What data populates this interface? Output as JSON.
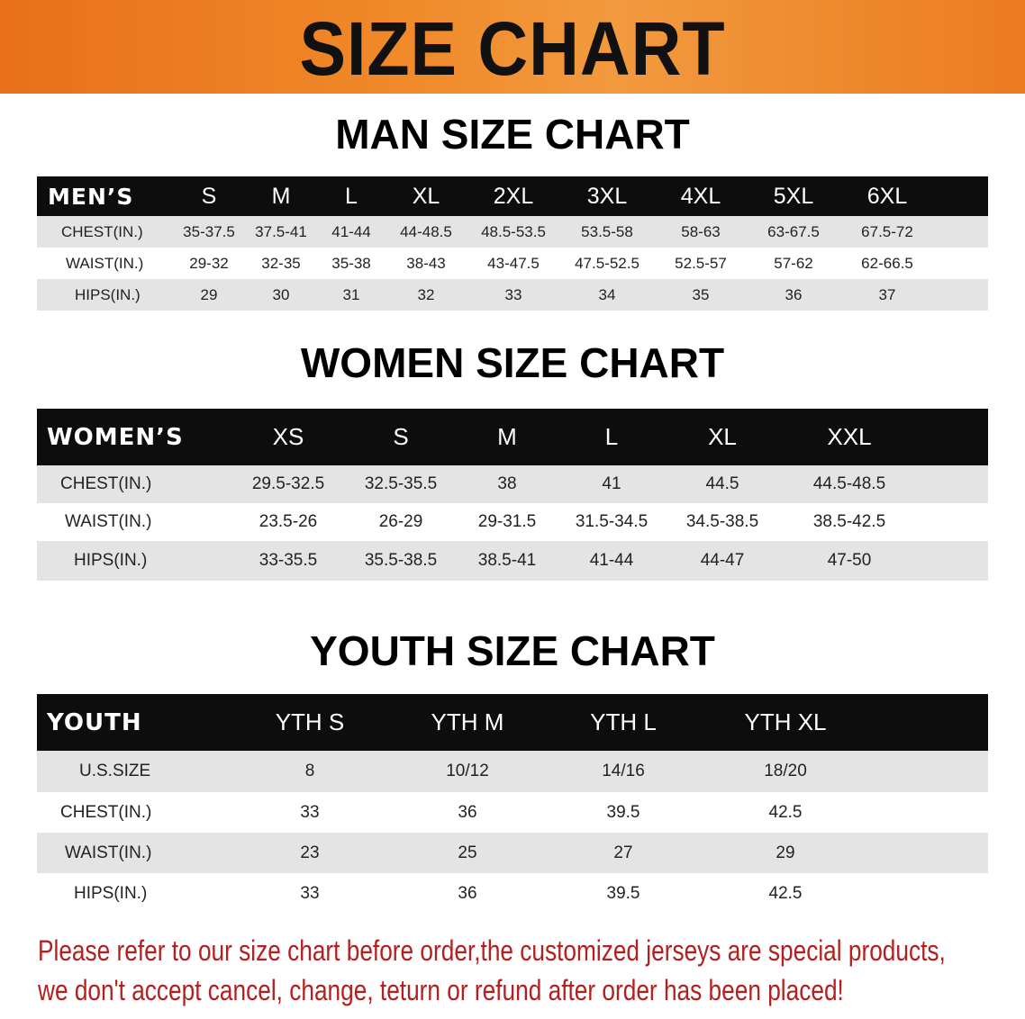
{
  "banner": {
    "title": "SIZE CHART"
  },
  "men": {
    "title": "MAN SIZE CHART",
    "header": [
      "MEN’S",
      "S",
      "M",
      "L",
      "XL",
      "2XL",
      "3XL",
      "4XL",
      "5XL",
      "6XL"
    ],
    "rows": [
      [
        "CHEST(IN.)",
        "35-37.5",
        "37.5-41",
        "41-44",
        "44-48.5",
        "48.5-53.5",
        "53.5-58",
        "58-63",
        "63-67.5",
        "67.5-72"
      ],
      [
        "WAIST(IN.)",
        "29-32",
        "32-35",
        "35-38",
        "38-43",
        "43-47.5",
        "47.5-52.5",
        "52.5-57",
        "57-62",
        "62-66.5"
      ],
      [
        "HIPS(IN.)",
        "29",
        "30",
        "31",
        "32",
        "33",
        "34",
        "35",
        "36",
        "37"
      ]
    ]
  },
  "women": {
    "title": "WOMEN SIZE CHART",
    "header": [
      "WOMEN’S",
      "XS",
      "S",
      "M",
      "L",
      "XL",
      "XXL"
    ],
    "rows": [
      [
        "CHEST(IN.)",
        "29.5-32.5",
        "32.5-35.5",
        "38",
        "41",
        "44.5",
        "44.5-48.5"
      ],
      [
        "WAIST(IN.)",
        "23.5-26",
        "26-29",
        "29-31.5",
        "31.5-34.5",
        "34.5-38.5",
        "38.5-42.5"
      ],
      [
        "HIPS(IN.)",
        "33-35.5",
        "35.5-38.5",
        "38.5-41",
        "41-44",
        "44-47",
        "47-50"
      ]
    ]
  },
  "youth": {
    "title": "YOUTH SIZE CHART",
    "header": [
      "YOUTH",
      "YTH S",
      "YTH M",
      "YTH L",
      "YTH XL"
    ],
    "rows": [
      [
        "U.S.SIZE",
        "8",
        "10/12",
        "14/16",
        "18/20"
      ],
      [
        "CHEST(IN.)",
        "33",
        "36",
        "39.5",
        "42.5"
      ],
      [
        "WAIST(IN.)",
        "23",
        "25",
        "27",
        "29"
      ],
      [
        "HIPS(IN.)",
        "33",
        "36",
        "39.5",
        "42.5"
      ]
    ]
  },
  "footer": {
    "line1": "Please refer to our size chart before order,the customized jerseys are special products,",
    "line2": "we don't accept cancel, change, teturn or refund after order has been placed!"
  },
  "colors": {
    "banner": "#ef8326",
    "header_row": "#0d0d0d",
    "stripe": "#e4e4e4",
    "notice": "#b3201f"
  }
}
